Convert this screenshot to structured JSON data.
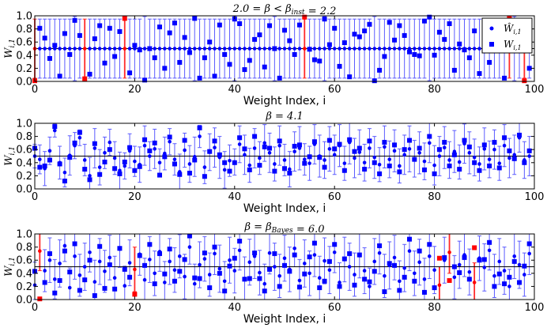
{
  "chart_data": [
    {
      "type": "scatter",
      "title": "2.0 = β < β_inst = 2.2",
      "title_parts": [
        "2.0 = ",
        "β",
        " < ",
        "β",
        "inst",
        " = 2.2"
      ],
      "xlabel": "Weight Index, i",
      "ylabel": "W",
      "ylabel_sub": "i,1",
      "xlim": [
        0,
        100
      ],
      "ylim": [
        0,
        1
      ],
      "xticks": [
        0,
        20,
        40,
        60,
        80,
        100
      ],
      "yticks": [
        0.0,
        0.2,
        0.4,
        0.6,
        0.8,
        1.0
      ],
      "ytick_labels": [
        "0.0",
        "0.2",
        "0.4",
        "0.6",
        "0.8",
        "1.0"
      ],
      "hline": 0.5,
      "legend": {
        "position": "top-right",
        "entries": [
          {
            "label": "Ŵ",
            "sub": "i,1",
            "marker": "circle"
          },
          {
            "label": "W",
            "sub": "i,1",
            "marker": "square"
          }
        ]
      },
      "estimates": [
        0.5,
        0.5,
        0.5,
        0.5,
        0.5,
        0.5,
        0.5,
        0.5,
        0.5,
        0.5,
        0.5,
        0.5,
        0.5,
        0.5,
        0.5,
        0.5,
        0.5,
        0.5,
        0.5,
        0.5,
        0.5,
        0.5,
        0.5,
        0.5,
        0.5,
        0.5,
        0.5,
        0.5,
        0.5,
        0.5,
        0.5,
        0.5,
        0.5,
        0.5,
        0.5,
        0.5,
        0.5,
        0.5,
        0.5,
        0.5,
        0.5,
        0.5,
        0.5,
        0.5,
        0.5,
        0.5,
        0.5,
        0.5,
        0.5,
        0.5,
        0.5,
        0.5,
        0.5,
        0.5,
        0.5,
        0.5,
        0.5,
        0.5,
        0.5,
        0.5,
        0.5,
        0.5,
        0.5,
        0.5,
        0.5,
        0.5,
        0.5,
        0.5,
        0.5,
        0.5,
        0.5,
        0.5,
        0.5,
        0.5,
        0.5,
        0.5,
        0.5,
        0.5,
        0.5,
        0.5,
        0.5,
        0.5,
        0.5,
        0.5,
        0.5,
        0.5,
        0.5,
        0.5,
        0.5,
        0.5,
        0.5,
        0.5,
        0.5,
        0.5,
        0.5,
        0.5,
        0.5,
        0.5,
        0.5,
        0.5
      ],
      "errors": [
        0.45,
        0.45,
        0.45,
        0.45,
        0.45,
        0.45,
        0.45,
        0.45,
        0.49,
        0.45,
        0.45,
        0.45,
        0.45,
        0.45,
        0.45,
        0.45,
        0.45,
        0.45,
        0.45,
        0.45,
        0.45,
        0.45,
        0.49,
        0.45,
        0.45,
        0.45,
        0.45,
        0.45,
        0.45,
        0.45,
        0.45,
        0.45,
        0.49,
        0.45,
        0.45,
        0.45,
        0.45,
        0.45,
        0.45,
        0.45,
        0.49,
        0.45,
        0.45,
        0.45,
        0.45,
        0.45,
        0.45,
        0.45,
        0.49,
        0.45,
        0.45,
        0.45,
        0.45,
        0.45,
        0.45,
        0.45,
        0.45,
        0.45,
        0.49,
        0.45,
        0.45,
        0.45,
        0.45,
        0.45,
        0.45,
        0.45,
        0.45,
        0.45,
        0.49,
        0.45,
        0.45,
        0.45,
        0.45,
        0.45,
        0.45,
        0.45,
        0.45,
        0.45,
        0.45,
        0.49,
        0.45,
        0.45,
        0.45,
        0.45,
        0.45,
        0.45,
        0.45,
        0.45,
        0.45,
        0.45,
        0.45,
        0.45,
        0.45,
        0.45,
        0.45,
        0.45,
        0.49,
        0.45,
        0.45,
        0.45
      ],
      "truth": [
        0.01,
        0.81,
        0.66,
        0.35,
        0.55,
        0.08,
        0.73,
        0.41,
        0.93,
        0.7,
        0.04,
        0.11,
        0.65,
        0.85,
        0.28,
        0.81,
        0.38,
        0.76,
        0.96,
        0.13,
        0.55,
        0.48,
        0.02,
        0.5,
        0.36,
        0.83,
        0.2,
        0.74,
        0.89,
        0.29,
        0.67,
        0.44,
        0.96,
        0.05,
        0.36,
        0.6,
        0.08,
        0.86,
        0.41,
        0.26,
        0.95,
        0.88,
        0.18,
        0.32,
        0.64,
        0.71,
        0.22,
        0.85,
        0.5,
        0.05,
        0.78,
        0.62,
        0.41,
        0.86,
        0.98,
        0.49,
        0.33,
        0.31,
        0.95,
        0.56,
        0.81,
        0.23,
        0.59,
        0.07,
        0.72,
        0.68,
        0.77,
        0.87,
        0.01,
        0.17,
        0.38,
        0.9,
        0.63,
        0.85,
        0.7,
        0.45,
        0.41,
        0.39,
        0.92,
        0.98,
        0.4,
        0.75,
        0.64,
        0.88,
        0.17,
        0.57,
        0.48,
        0.36,
        0.77,
        0.12,
        0.81,
        0.29,
        0.59,
        0.7,
        0.05,
        0.97,
        0.73,
        0.55,
        0.01,
        0.2
      ],
      "colors": {
        "blue": "#0000ff",
        "red": "#ff0000",
        "errorbar_blue": "#5b5bff",
        "errorbar_red": "#ff2a2a"
      }
    },
    {
      "type": "scatter",
      "title": "β = 4.1",
      "title_parts": [
        "β",
        " = 4.1"
      ],
      "xlabel": "Weight Index, i",
      "ylabel": "W",
      "ylabel_sub": "i,1",
      "xlim": [
        0,
        100
      ],
      "ylim": [
        0,
        1
      ],
      "xticks": [
        0,
        20,
        40,
        60,
        80,
        100
      ],
      "yticks": [
        0.0,
        0.2,
        0.4,
        0.6,
        0.8,
        1.0
      ],
      "ytick_labels": [
        "0.0",
        "0.2",
        "0.4",
        "0.6",
        "0.8",
        "1.0"
      ],
      "hline": 0.5,
      "estimates": [
        0.5,
        0.45,
        0.31,
        0.58,
        0.89,
        0.4,
        0.25,
        0.51,
        0.66,
        0.78,
        0.44,
        0.2,
        0.62,
        0.33,
        0.55,
        0.71,
        0.47,
        0.28,
        0.35,
        0.58,
        0.42,
        0.37,
        0.66,
        0.5,
        0.61,
        0.4,
        0.54,
        0.72,
        0.45,
        0.26,
        0.59,
        0.38,
        0.49,
        0.8,
        0.33,
        0.56,
        0.63,
        0.48,
        0.29,
        0.43,
        0.41,
        0.68,
        0.52,
        0.36,
        0.62,
        0.47,
        0.7,
        0.55,
        0.38,
        0.66,
        0.44,
        0.3,
        0.57,
        0.62,
        0.45,
        0.39,
        0.68,
        0.5,
        0.44,
        0.61,
        0.52,
        0.66,
        0.39,
        0.71,
        0.47,
        0.56,
        0.4,
        0.62,
        0.48,
        0.37,
        0.64,
        0.45,
        0.58,
        0.35,
        0.52,
        0.61,
        0.46,
        0.55,
        0.42,
        0.7,
        0.36,
        0.5,
        0.63,
        0.44,
        0.57,
        0.41,
        0.69,
        0.55,
        0.48,
        0.38,
        0.61,
        0.45,
        0.6,
        0.39,
        0.66,
        0.47,
        0.52,
        0.78,
        0.44,
        0.5
      ],
      "errors": [
        0.18,
        0.22,
        0.26,
        0.21,
        0.1,
        0.25,
        0.22,
        0.3,
        0.2,
        0.12,
        0.24,
        0.28,
        0.3,
        0.27,
        0.24,
        0.2,
        0.25,
        0.28,
        0.2,
        0.26,
        0.23,
        0.27,
        0.3,
        0.22,
        0.3,
        0.21,
        0.25,
        0.2,
        0.24,
        0.27,
        0.26,
        0.28,
        0.3,
        0.17,
        0.25,
        0.28,
        0.3,
        0.32,
        0.28,
        0.24,
        0.2,
        0.28,
        0.3,
        0.26,
        0.3,
        0.25,
        0.28,
        0.3,
        0.26,
        0.3,
        0.24,
        0.27,
        0.3,
        0.33,
        0.24,
        0.26,
        0.3,
        0.32,
        0.28,
        0.34,
        0.3,
        0.32,
        0.26,
        0.33,
        0.3,
        0.34,
        0.28,
        0.3,
        0.32,
        0.26,
        0.32,
        0.28,
        0.32,
        0.26,
        0.3,
        0.35,
        0.28,
        0.32,
        0.28,
        0.3,
        0.3,
        0.3,
        0.32,
        0.28,
        0.32,
        0.26,
        0.3,
        0.32,
        0.28,
        0.26,
        0.32,
        0.28,
        0.3,
        0.26,
        0.32,
        0.3,
        0.3,
        0.22,
        0.28,
        0.3
      ],
      "truth": [
        0.62,
        0.33,
        0.35,
        0.44,
        0.95,
        0.38,
        0.12,
        0.48,
        0.7,
        0.86,
        0.3,
        0.14,
        0.69,
        0.22,
        0.41,
        0.6,
        0.31,
        0.23,
        0.41,
        0.63,
        0.28,
        0.34,
        0.75,
        0.58,
        0.7,
        0.21,
        0.49,
        0.79,
        0.38,
        0.22,
        0.74,
        0.24,
        0.44,
        0.93,
        0.19,
        0.57,
        0.73,
        0.52,
        0.4,
        0.27,
        0.4,
        0.78,
        0.61,
        0.29,
        0.8,
        0.36,
        0.64,
        0.62,
        0.27,
        0.73,
        0.31,
        0.24,
        0.65,
        0.67,
        0.39,
        0.49,
        0.72,
        0.48,
        0.33,
        0.74,
        0.61,
        0.68,
        0.28,
        0.75,
        0.57,
        0.62,
        0.3,
        0.73,
        0.4,
        0.23,
        0.71,
        0.35,
        0.67,
        0.26,
        0.6,
        0.74,
        0.45,
        0.62,
        0.29,
        0.8,
        0.23,
        0.6,
        0.71,
        0.35,
        0.52,
        0.3,
        0.74,
        0.64,
        0.4,
        0.28,
        0.67,
        0.35,
        0.71,
        0.32,
        0.78,
        0.58,
        0.46,
        0.82,
        0.4,
        0.58
      ],
      "colors": {
        "blue": "#0000ff",
        "red": "#ff0000",
        "errorbar_blue": "#5b5bff",
        "errorbar_red": "#ff2a2a"
      }
    },
    {
      "type": "scatter",
      "title": "β = β_Bayes = 6.0",
      "title_parts": [
        "β",
        " = ",
        "β",
        "Bayes",
        " = 6.0"
      ],
      "xlabel": "Weight Index, i",
      "ylabel": "W",
      "ylabel_sub": "i,1",
      "xlim": [
        0,
        100
      ],
      "ylim": [
        0,
        1
      ],
      "xticks": [
        0,
        20,
        40,
        60,
        80,
        100
      ],
      "yticks": [
        0.0,
        0.2,
        0.4,
        0.6,
        0.8,
        1.0
      ],
      "ytick_labels": [
        "0.0",
        "0.2",
        "0.4",
        "0.6",
        "0.8",
        "1.0"
      ],
      "hline": 0.5,
      "estimates": [
        0.22,
        0.74,
        0.44,
        0.6,
        0.31,
        0.55,
        0.82,
        0.18,
        0.66,
        0.37,
        0.5,
        0.72,
        0.27,
        0.58,
        0.43,
        0.64,
        0.33,
        0.77,
        0.21,
        0.56,
        0.46,
        0.69,
        0.3,
        0.61,
        0.4,
        0.73,
        0.26,
        0.58,
        0.45,
        0.66,
        0.35,
        0.8,
        0.24,
        0.53,
        0.62,
        0.38,
        0.7,
        0.47,
        0.28,
        0.6,
        0.44,
        0.75,
        0.32,
        0.57,
        0.66,
        0.41,
        0.24,
        0.71,
        0.5,
        0.36,
        0.63,
        0.46,
        0.78,
        0.29,
        0.55,
        0.4,
        0.68,
        0.33,
        0.59,
        0.45,
        0.72,
        0.26,
        0.61,
        0.5,
        0.38,
        0.67,
        0.44,
        0.2,
        0.58,
        0.71,
        0.36,
        0.52,
        0.64,
        0.28,
        0.48,
        0.74,
        0.4,
        0.57,
        0.31,
        0.66,
        0.45,
        0.22,
        0.6,
        0.72,
        0.34,
        0.53,
        0.68,
        0.42,
        0.26,
        0.63,
        0.49,
        0.75,
        0.36,
        0.58,
        0.44,
        0.2,
        0.66,
        0.53,
        0.38,
        0.7
      ],
      "errors": [
        0.35,
        0.3,
        0.32,
        0.34,
        0.3,
        0.36,
        0.24,
        0.3,
        0.35,
        0.32,
        0.36,
        0.3,
        0.33,
        0.35,
        0.32,
        0.34,
        0.33,
        0.28,
        0.3,
        0.35,
        0.34,
        0.32,
        0.33,
        0.35,
        0.34,
        0.3,
        0.32,
        0.35,
        0.34,
        0.33,
        0.34,
        0.26,
        0.3,
        0.35,
        0.34,
        0.33,
        0.32,
        0.36,
        0.3,
        0.35,
        0.34,
        0.3,
        0.33,
        0.35,
        0.34,
        0.34,
        0.3,
        0.32,
        0.36,
        0.33,
        0.35,
        0.34,
        0.28,
        0.32,
        0.36,
        0.34,
        0.33,
        0.33,
        0.35,
        0.36,
        0.31,
        0.3,
        0.34,
        0.36,
        0.33,
        0.34,
        0.35,
        0.28,
        0.35,
        0.32,
        0.33,
        0.36,
        0.34,
        0.31,
        0.36,
        0.3,
        0.34,
        0.35,
        0.32,
        0.34,
        0.36,
        0.28,
        0.35,
        0.32,
        0.33,
        0.36,
        0.33,
        0.35,
        0.3,
        0.34,
        0.36,
        0.3,
        0.33,
        0.35,
        0.36,
        0.26,
        0.34,
        0.36,
        0.33,
        0.32
      ],
      "truth": [
        0.43,
        0.01,
        0.26,
        0.7,
        0.1,
        0.29,
        0.74,
        0.42,
        0.85,
        0.14,
        0.3,
        0.6,
        0.06,
        0.81,
        0.17,
        0.53,
        0.16,
        0.78,
        0.46,
        0.34,
        0.08,
        0.67,
        0.52,
        0.84,
        0.24,
        0.7,
        0.39,
        0.77,
        0.28,
        0.43,
        0.61,
        0.97,
        0.33,
        0.32,
        0.71,
        0.18,
        0.8,
        0.4,
        0.13,
        0.51,
        0.63,
        0.89,
        0.31,
        0.32,
        0.71,
        0.32,
        0.13,
        0.46,
        0.7,
        0.2,
        0.52,
        0.43,
        0.68,
        0.19,
        0.39,
        0.65,
        0.86,
        0.18,
        0.28,
        0.58,
        0.84,
        0.2,
        0.62,
        0.7,
        0.22,
        0.68,
        0.31,
        0.27,
        0.43,
        0.82,
        0.12,
        0.55,
        0.52,
        0.14,
        0.34,
        0.92,
        0.28,
        0.74,
        0.11,
        0.84,
        0.18,
        0.63,
        0.64,
        0.29,
        0.5,
        0.41,
        0.64,
        0.31,
        0.79,
        0.6,
        0.61,
        0.87,
        0.2,
        0.39,
        0.24,
        0.34,
        0.58,
        0.26,
        0.51,
        0.85
      ],
      "colors": {
        "blue": "#0000ff",
        "red": "#ff0000",
        "errorbar_blue": "#5b5bff",
        "errorbar_red": "#ff2a2a"
      }
    }
  ]
}
